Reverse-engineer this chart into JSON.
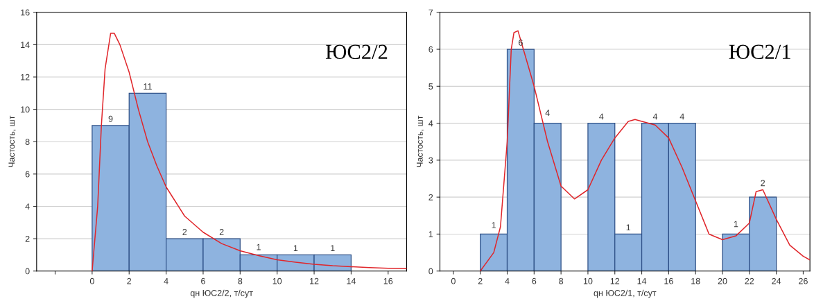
{
  "chart_data": [
    {
      "type": "histogram",
      "xlabel": "qн ЮС2/2, т/сут",
      "ylabel": "Частость, шт",
      "annotations": [
        "ЮС2/2"
      ],
      "bins": [
        0,
        2,
        4,
        6,
        8,
        10,
        12,
        14
      ],
      "series": [
        {
          "color": "#8eb3df",
          "values": [
            9,
            11,
            2,
            2,
            1,
            1,
            1
          ],
          "data_labels": true
        },
        {
          "type": "line",
          "color": "#e0262b",
          "x": [
            0,
            0.3,
            0.5,
            0.7,
            1.0,
            1.2,
            1.5,
            2,
            2.5,
            3,
            3.5,
            4,
            5,
            6,
            7,
            8,
            9,
            10,
            11,
            12,
            13,
            14,
            15,
            16,
            17
          ],
          "values": [
            0,
            4,
            9,
            12.5,
            14.7,
            14.7,
            14,
            12.3,
            10,
            8,
            6.5,
            5.2,
            3.4,
            2.4,
            1.7,
            1.25,
            0.95,
            0.7,
            0.55,
            0.42,
            0.33,
            0.27,
            0.21,
            0.17,
            0.15
          ]
        }
      ],
      "xlim": [
        -3,
        17
      ],
      "xticks": [
        {
          "value": -2,
          "label": null
        },
        0,
        2,
        4,
        6,
        8,
        10,
        12,
        14,
        16
      ],
      "ylim": [
        0,
        16
      ],
      "yticks": [
        0,
        2,
        4,
        6,
        8,
        10,
        12,
        14,
        16
      ],
      "grid": "y"
    },
    {
      "type": "histogram",
      "xlabel": "qн ЮС2/1, т/сут",
      "ylabel": "Частость, шт",
      "annotations": [
        "ЮС2/1"
      ],
      "bins": [
        2,
        4,
        6,
        8,
        10,
        12,
        14,
        16,
        18,
        20,
        22,
        24
      ],
      "series": [
        {
          "color": "#8eb3df",
          "values": [
            1,
            6,
            4,
            0,
            4,
            1,
            4,
            4,
            0,
            1,
            2
          ],
          "value_labels": [
            "1",
            "6",
            "4",
            null,
            "4",
            "1",
            "4",
            "4",
            null,
            "1",
            "2"
          ]
        },
        {
          "type": "line",
          "color": "#e0262b",
          "x": [
            2,
            3,
            3.5,
            4,
            4.3,
            4.5,
            4.8,
            5.2,
            6,
            7,
            8,
            9,
            10,
            11,
            12,
            13,
            13.5,
            15,
            16,
            17,
            18,
            19,
            20,
            21,
            22,
            22.5,
            23,
            24,
            25,
            26,
            26.5
          ],
          "values": [
            0,
            0.5,
            1.2,
            3.5,
            6,
            6.45,
            6.5,
            6.0,
            5,
            3.5,
            2.3,
            1.95,
            2.2,
            3,
            3.6,
            4.05,
            4.1,
            3.95,
            3.6,
            2.8,
            1.9,
            1.0,
            0.85,
            0.95,
            1.3,
            2.15,
            2.2,
            1.4,
            0.7,
            0.4,
            0.3
          ]
        }
      ],
      "xlim": [
        -1,
        26.5
      ],
      "xticks": [
        0,
        2,
        4,
        6,
        8,
        10,
        12,
        14,
        16,
        18,
        20,
        22,
        24,
        26
      ],
      "ylim": [
        0,
        7
      ],
      "yticks": [
        0,
        1,
        2,
        3,
        4,
        5,
        6,
        7
      ],
      "grid": "y"
    }
  ]
}
